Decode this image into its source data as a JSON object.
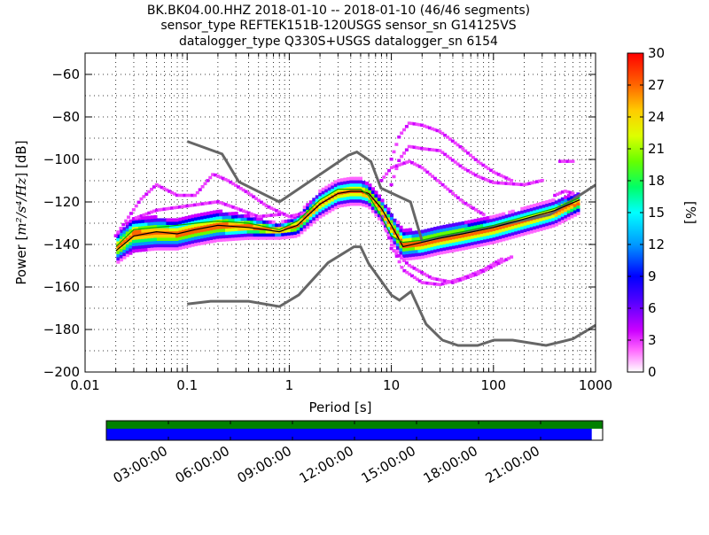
{
  "title": {
    "line1": "BK.BK04.00.HHZ   2018-01-10 -- 2018-01-10  (46/46 segments)",
    "line2": "sensor_type REFTEK151B-120USGS sensor_sn G14125VS",
    "line3": "datalogger_type Q330S+USGS datalogger_sn 6154"
  },
  "chart_data": {
    "type": "heatmap",
    "xlabel": "Period [s]",
    "ylabel_text": "Power [",
    "ylabel_units": "m²/s⁴/Hz",
    "ylabel_end": "] [dB]",
    "xscale": "log",
    "xlim": [
      0.01,
      1000
    ],
    "ylim": [
      -200,
      -50
    ],
    "xticks": [
      {
        "value": 0.01,
        "label": "0.01"
      },
      {
        "value": 0.1,
        "label": "0.1"
      },
      {
        "value": 1,
        "label": "1"
      },
      {
        "value": 10,
        "label": "10"
      },
      {
        "value": 100,
        "label": "100"
      },
      {
        "value": 1000,
        "label": "1000"
      }
    ],
    "yticks": [
      -200,
      -180,
      -160,
      -140,
      -120,
      -100,
      -80,
      -60
    ],
    "colorbar": {
      "label": "[%]",
      "min": 0,
      "max": 30,
      "ticks": [
        0,
        3,
        6,
        9,
        12,
        15,
        18,
        21,
        24,
        27,
        30
      ]
    },
    "nhnm": {
      "name": "new high noise model",
      "x": [
        0.1,
        0.22,
        0.32,
        0.8,
        3.8,
        4.6,
        6.3,
        7.9,
        15.4,
        20,
        354.8,
        1000
      ],
      "y": [
        -91.5,
        -97.4,
        -110.5,
        -120,
        -98,
        -96.5,
        -101,
        -113.5,
        -120,
        -138.5,
        -126,
        -112
      ]
    },
    "nlnm": {
      "name": "new low noise model",
      "x": [
        0.1,
        0.17,
        0.4,
        0.8,
        1.24,
        2.4,
        4.3,
        5,
        6,
        10,
        12,
        15.6,
        21.9,
        31.6,
        45,
        70,
        101,
        154,
        328,
        600,
        1000
      ],
      "y": [
        -168,
        -166.7,
        -166.7,
        -169.2,
        -163.7,
        -148.6,
        -141.1,
        -141.1,
        -149,
        -163.8,
        -166.2,
        -162.1,
        -177.5,
        -185,
        -187.5,
        -187.5,
        -185,
        -185,
        -187.5,
        -184.4,
        -178
      ]
    },
    "mode_curve": {
      "name": "mode",
      "x": [
        0.02,
        0.03,
        0.05,
        0.08,
        0.12,
        0.2,
        0.4,
        0.8,
        1.2,
        2,
        3,
        4,
        5,
        6,
        8,
        10,
        13,
        20,
        30,
        50,
        100,
        200,
        400,
        700
      ],
      "y": [
        -143,
        -136,
        -134,
        -135,
        -133,
        -131,
        -132,
        -134,
        -131,
        -121,
        -116,
        -115,
        -115,
        -116,
        -123,
        -131,
        -141,
        -139,
        -137,
        -135,
        -132,
        -128,
        -124,
        -119
      ]
    },
    "mean_curve": {
      "name": "mean",
      "x": [
        0.02,
        0.03,
        0.05,
        0.08,
        0.12,
        0.2,
        0.4,
        0.8,
        1.2,
        2,
        3,
        4,
        5,
        6,
        8,
        10,
        13,
        20,
        30,
        50,
        100,
        200,
        400,
        700
      ],
      "y": [
        -141,
        -133,
        -132,
        -131,
        -130,
        -129,
        -130,
        -133,
        -129,
        -119,
        -114,
        -114,
        -114,
        -117,
        -127,
        -136,
        -139,
        -138,
        -136,
        -134,
        -131,
        -127,
        -123,
        -118
      ]
    },
    "density_bands": [
      {
        "x": [
          0.02,
          0.03,
          0.05,
          0.08,
          0.12,
          0.2,
          0.4,
          0.8,
          1.2,
          2,
          3,
          4,
          5,
          6,
          8,
          10,
          13,
          20,
          30,
          50,
          100,
          200,
          400,
          700
        ],
        "y": [
          -139,
          -132,
          -131,
          -132,
          -130,
          -128,
          -129,
          -132,
          -128,
          -118,
          -113,
          -112,
          -112,
          -114,
          -121,
          -128,
          -138,
          -136,
          -134,
          -133,
          -130,
          -126,
          -122,
          -117
        ],
        "weight": 14
      },
      {
        "x": [
          0.02,
          0.03,
          0.05,
          0.08,
          0.12,
          0.2,
          0.4,
          0.8,
          1.2,
          2,
          3,
          4,
          5,
          6,
          8,
          10,
          13,
          20,
          30,
          50,
          100,
          200,
          400,
          700
        ],
        "y": [
          -146,
          -139,
          -138,
          -138,
          -136,
          -134,
          -134,
          -135,
          -133,
          -124,
          -119,
          -118,
          -118,
          -119,
          -125,
          -134,
          -143,
          -142,
          -140,
          -138,
          -135,
          -131,
          -127,
          -121
        ],
        "weight": 12
      },
      {
        "x": [
          0.02,
          0.03,
          0.05,
          0.08,
          0.12,
          0.2,
          0.4,
          0.8,
          1.2,
          2,
          3,
          4,
          5,
          6,
          8,
          10,
          13,
          20,
          30,
          50,
          100,
          200,
          400,
          700
        ],
        "y": [
          -136,
          -128,
          -128,
          -129,
          -127,
          -125,
          -127,
          -131,
          -127,
          -116,
          -111,
          -110,
          -110,
          -112,
          -119,
          -126,
          -134,
          -134,
          -132,
          -130,
          -128,
          -124,
          -120,
          -116
        ],
        "weight": 8
      },
      {
        "x": [
          0.02,
          0.03,
          0.05,
          0.08,
          0.12,
          0.2,
          0.4,
          0.8,
          1.2,
          2,
          3,
          4,
          5,
          6,
          8,
          10,
          13,
          20,
          30,
          50,
          100,
          200,
          400,
          700
        ],
        "y": [
          -148,
          -142,
          -141,
          -141,
          -139,
          -137,
          -136,
          -136,
          -135,
          -126,
          -121,
          -120,
          -120,
          -121,
          -128,
          -137,
          -146,
          -145,
          -143,
          -141,
          -138,
          -134,
          -130,
          -124
        ],
        "weight": 6
      }
    ],
    "outlier_traces": [
      {
        "x": [
          0.02,
          0.035,
          0.05,
          0.08,
          0.12,
          0.18,
          0.25,
          0.4,
          0.6,
          1.0,
          1.5
        ],
        "y": [
          -136,
          -119,
          -112,
          -117,
          -117,
          -107,
          -110,
          -116,
          -122,
          -127,
          -125
        ]
      },
      {
        "x": [
          0.03,
          0.05,
          0.1,
          0.2,
          0.3,
          0.5,
          0.8
        ],
        "y": [
          -128,
          -124,
          -122,
          -120,
          -123,
          -127,
          -126
        ]
      },
      {
        "x": [
          10,
          12,
          15,
          20,
          30,
          50,
          70,
          100,
          150
        ],
        "y": [
          -100,
          -89,
          -83,
          -84,
          -87,
          -95,
          -101,
          -106,
          -110
        ]
      },
      {
        "x": [
          10,
          12,
          15,
          20,
          30,
          50,
          70,
          100,
          200,
          300
        ],
        "y": [
          -112,
          -100,
          -94,
          -95,
          -96,
          -104,
          -108,
          -111,
          -112,
          -110
        ]
      },
      {
        "x": [
          8,
          10,
          15,
          20,
          30,
          50,
          80
        ],
        "y": [
          -110,
          -104,
          -101,
          -104,
          -111,
          -120,
          -126
        ]
      },
      {
        "x": [
          8,
          10,
          13,
          20,
          30,
          50,
          80,
          120
        ],
        "y": [
          -127,
          -140,
          -152,
          -158,
          -159,
          -156,
          -152,
          -147
        ]
      },
      {
        "x": [
          10,
          15,
          25,
          40,
          70,
          150
        ],
        "y": [
          -142,
          -150,
          -156,
          -158,
          -154,
          -146
        ]
      },
      {
        "x": [
          450,
          550,
          600
        ],
        "y": [
          -101,
          -101,
          -101
        ]
      },
      {
        "x": [
          400,
          500,
          600
        ],
        "y": [
          -117,
          -115,
          -116
        ]
      }
    ],
    "timeline": {
      "tick_labels": [
        "03:00:00",
        "06:00:00",
        "09:00:00",
        "12:00:00",
        "15:00:00",
        "18:00:00",
        "21:00:00"
      ],
      "coverage_fraction": 0.978,
      "colors": {
        "data": "#0000ff",
        "used": "#008000"
      }
    }
  }
}
